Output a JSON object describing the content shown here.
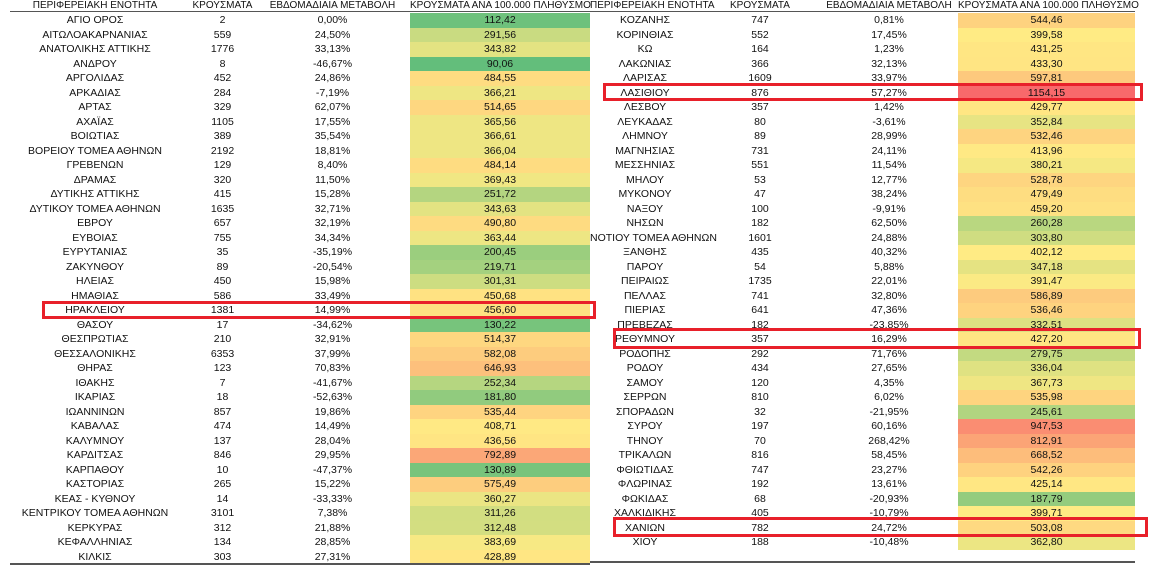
{
  "headers": [
    "ΠΕΡΙΦΕΡΕΙΑΚΗ ΕΝΟΤΗΤΑ",
    "ΚΡΟΥΣΜΑΤΑ",
    "ΕΒΔΟΜΑΔΙΑΙΑ ΜΕΤΑΒΟΛΗ",
    "ΚΡΟΥΣΜΑΤΑ ΑΝΑ 100.000 ΠΛΗΘΥΣΜΟ"
  ],
  "color_scale": {
    "min": "#63BE7B",
    "mid": "#FFEB84",
    "max": "#F8696B"
  },
  "highlight_color": "#E8202A",
  "highlighted": [
    "ΗΡΑΚΛΕΙΟΥ",
    "ΛΑΣΙΘΙΟΥ",
    "ΡΕΘΥΜΝΟΥ",
    "ΧΑΝΙΩΝ"
  ],
  "left_rows": [
    [
      "ΑΓΙΟ ΟΡΟΣ",
      "2",
      "0,00%",
      "112,42"
    ],
    [
      "ΑΙΤΩΛΟΑΚΑΡΝΑΝΙΑΣ",
      "559",
      "24,50%",
      "291,56"
    ],
    [
      "ΑΝΑΤΟΛΙΚΗΣ ΑΤΤΙΚΗΣ",
      "1776",
      "33,13%",
      "343,82"
    ],
    [
      "ΑΝΔΡΟΥ",
      "8",
      "-46,67%",
      "90,06"
    ],
    [
      "ΑΡΓΟΛΙΔΑΣ",
      "452",
      "24,86%",
      "484,55"
    ],
    [
      "ΑΡΚΑΔΙΑΣ",
      "284",
      "-7,19%",
      "366,21"
    ],
    [
      "ΑΡΤΑΣ",
      "329",
      "62,07%",
      "514,65"
    ],
    [
      "ΑΧΑΪΑΣ",
      "1105",
      "17,55%",
      "365,56"
    ],
    [
      "ΒΟΙΩΤΙΑΣ",
      "389",
      "35,54%",
      "366,61"
    ],
    [
      "ΒΟΡΕΙΟΥ ΤΟΜΕΑ ΑΘΗΝΩΝ",
      "2192",
      "18,81%",
      "366,04"
    ],
    [
      "ΓΡΕΒΕΝΩΝ",
      "129",
      "8,40%",
      "484,14"
    ],
    [
      "ΔΡΑΜΑΣ",
      "320",
      "11,50%",
      "369,43"
    ],
    [
      "ΔΥΤΙΚΗΣ ΑΤΤΙΚΗΣ",
      "415",
      "15,28%",
      "251,72"
    ],
    [
      "ΔΥΤΙΚΟΥ ΤΟΜΕΑ ΑΘΗΝΩΝ",
      "1635",
      "32,71%",
      "343,63"
    ],
    [
      "ΕΒΡΟΥ",
      "657",
      "32,19%",
      "490,80"
    ],
    [
      "ΕΥΒΟΙΑΣ",
      "755",
      "34,34%",
      "363,44"
    ],
    [
      "ΕΥΡΥΤΑΝΙΑΣ",
      "35",
      "-35,19%",
      "200,45"
    ],
    [
      "ΖΑΚΥΝΘΟΥ",
      "89",
      "-20,54%",
      "219,71"
    ],
    [
      "ΗΛΕΙΑΣ",
      "450",
      "15,98%",
      "301,31"
    ],
    [
      "ΗΜΑΘΙΑΣ",
      "586",
      "33,49%",
      "450,68"
    ],
    [
      "ΗΡΑΚΛΕΙΟΥ",
      "1381",
      "14,99%",
      "456,60"
    ],
    [
      "ΘΑΣΟΥ",
      "17",
      "-34,62%",
      "130,22"
    ],
    [
      "ΘΕΣΠΡΩΤΙΑΣ",
      "210",
      "32,91%",
      "514,37"
    ],
    [
      "ΘΕΣΣΑΛΟΝΙΚΗΣ",
      "6353",
      "37,99%",
      "582,08"
    ],
    [
      "ΘΗΡΑΣ",
      "123",
      "70,83%",
      "646,93"
    ],
    [
      "ΙΘΑΚΗΣ",
      "7",
      "-41,67%",
      "252,34"
    ],
    [
      "ΙΚΑΡΙΑΣ",
      "18",
      "-52,63%",
      "181,80"
    ],
    [
      "ΙΩΑΝΝΙΝΩΝ",
      "857",
      "19,86%",
      "535,44"
    ],
    [
      "ΚΑΒΑΛΑΣ",
      "474",
      "14,49%",
      "408,71"
    ],
    [
      "ΚΑΛΥΜΝΟΥ",
      "137",
      "28,04%",
      "436,56"
    ],
    [
      "ΚΑΡΔΙΤΣΑΣ",
      "846",
      "29,95%",
      "792,89"
    ],
    [
      "ΚΑΡΠΑΘΟΥ",
      "10",
      "-47,37%",
      "130,89"
    ],
    [
      "ΚΑΣΤΟΡΙΑΣ",
      "265",
      "15,22%",
      "575,49"
    ],
    [
      "ΚΕΑΣ - ΚΥΘΝΟΥ",
      "14",
      "-33,33%",
      "360,27"
    ],
    [
      "ΚΕΝΤΡΙΚΟΥ ΤΟΜΕΑ ΑΘΗΝΩΝ",
      "3101",
      "7,38%",
      "311,26"
    ],
    [
      "ΚΕΡΚΥΡΑΣ",
      "312",
      "21,88%",
      "312,48"
    ],
    [
      "ΚΕΦΑΛΛΗΝΙΑΣ",
      "134",
      "28,85%",
      "383,69"
    ],
    [
      "ΚΙΛΚΙΣ",
      "303",
      "27,31%",
      "428,89"
    ]
  ],
  "right_rows": [
    [
      "ΚΟΖΑΝΗΣ",
      "747",
      "0,81%",
      "544,46"
    ],
    [
      "ΚΟΡΙΝΘΙΑΣ",
      "552",
      "17,45%",
      "399,58"
    ],
    [
      "ΚΩ",
      "164",
      "1,23%",
      "431,25"
    ],
    [
      "ΛΑΚΩΝΙΑΣ",
      "366",
      "32,13%",
      "433,30"
    ],
    [
      "ΛΑΡΙΣΑΣ",
      "1609",
      "33,97%",
      "597,81"
    ],
    [
      "ΛΑΣΙΘΙΟΥ",
      "876",
      "57,27%",
      "1154,15"
    ],
    [
      "ΛΕΣΒΟΥ",
      "357",
      "1,42%",
      "429,77"
    ],
    [
      "ΛΕΥΚΑΔΑΣ",
      "80",
      "-3,61%",
      "352,84"
    ],
    [
      "ΛΗΜΝΟΥ",
      "89",
      "28,99%",
      "532,46"
    ],
    [
      "ΜΑΓΝΗΣΙΑΣ",
      "731",
      "24,11%",
      "413,96"
    ],
    [
      "ΜΕΣΣΗΝΙΑΣ",
      "551",
      "11,54%",
      "380,21"
    ],
    [
      "ΜΗΛΟΥ",
      "53",
      "12,77%",
      "528,78"
    ],
    [
      "ΜΥΚΟΝΟΥ",
      "47",
      "38,24%",
      "479,49"
    ],
    [
      "ΝΑΞΟΥ",
      "100",
      "-9,91%",
      "459,20"
    ],
    [
      "ΝΗΣΩΝ",
      "182",
      "62,50%",
      "260,28"
    ],
    [
      "ΝΟΤΙΟΥ ΤΟΜΕΑ ΑΘΗΝΩΝ",
      "1601",
      "24,88%",
      "303,80"
    ],
    [
      "ΞΑΝΘΗΣ",
      "435",
      "40,32%",
      "402,12"
    ],
    [
      "ΠΑΡΟΥ",
      "54",
      "5,88%",
      "347,18"
    ],
    [
      "ΠΕΙΡΑΙΩΣ",
      "1735",
      "22,01%",
      "391,47"
    ],
    [
      "ΠΕΛΛΑΣ",
      "741",
      "32,80%",
      "586,89"
    ],
    [
      "ΠΙΕΡΙΑΣ",
      "641",
      "47,36%",
      "536,46"
    ],
    [
      "ΠΡΕΒΕΖΑΣ",
      "182",
      "-23,85%",
      "332,51"
    ],
    [
      "ΡΕΘΥΜΝΟΥ",
      "357",
      "16,29%",
      "427,20"
    ],
    [
      "ΡΟΔΟΠΗΣ",
      "292",
      "71,76%",
      "279,75"
    ],
    [
      "ΡΟΔΟΥ",
      "434",
      "27,65%",
      "336,04"
    ],
    [
      "ΣΑΜΟΥ",
      "120",
      "4,35%",
      "367,73"
    ],
    [
      "ΣΕΡΡΩΝ",
      "810",
      "6,02%",
      "535,98"
    ],
    [
      "ΣΠΟΡΑΔΩΝ",
      "32",
      "-21,95%",
      "245,61"
    ],
    [
      "ΣΥΡΟΥ",
      "197",
      "60,16%",
      "947,53"
    ],
    [
      "ΤΗΝΟΥ",
      "70",
      "268,42%",
      "812,91"
    ],
    [
      "ΤΡΙΚΑΛΩΝ",
      "816",
      "58,45%",
      "668,52"
    ],
    [
      "ΦΘΙΩΤΙΔΑΣ",
      "747",
      "23,27%",
      "542,26"
    ],
    [
      "ΦΛΩΡΙΝΑΣ",
      "192",
      "13,61%",
      "425,14"
    ],
    [
      "ΦΩΚΙΔΑΣ",
      "68",
      "-20,93%",
      "187,79"
    ],
    [
      "ΧΑΛΚΙΔΙΚΗΣ",
      "405",
      "-10,79%",
      "399,71"
    ],
    [
      "ΧΑΝΙΩΝ",
      "782",
      "24,72%",
      "503,08"
    ],
    [
      "ΧΙΟΥ",
      "188",
      "-10,48%",
      "362,80"
    ]
  ]
}
